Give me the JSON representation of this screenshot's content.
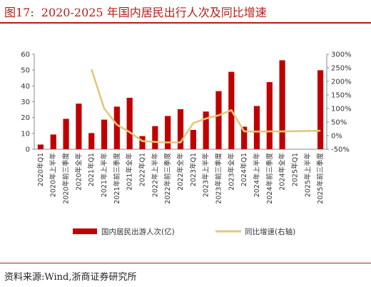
{
  "header": {
    "figure_label": "图17:",
    "title": "2020-2025 年国内居民出行人次及同比增速"
  },
  "source": "资料来源:Wind,浙商证券研究所",
  "colors": {
    "bar": "#c00000",
    "line": "#e3c77a",
    "title": "#b71c1c"
  },
  "chart_data": {
    "type": "bar",
    "categories": [
      "2020年Q1",
      "2020年上半年",
      "2020年前三季度",
      "2020年全年",
      "2021年Q1",
      "2021年上半年",
      "2021年前三季度",
      "2021年全年",
      "2022年Q1",
      "2022年上半年",
      "2022年前三季度",
      "2022年全年",
      "2023年Q1",
      "2023年上半年",
      "2023年前三季度",
      "2023年全年",
      "2024年Q1",
      "2024年上半年",
      "2024年前三季度",
      "2024年全年",
      "2025年Q1",
      "2025年上半年",
      "2025年前三季度"
    ],
    "series": [
      {
        "name": "国内居民出游人次(亿)",
        "type": "bar",
        "axis": "left",
        "values": [
          2.95,
          9.3,
          19.2,
          28.8,
          10.2,
          18.7,
          26.9,
          32.5,
          8.3,
          14.6,
          21.0,
          25.3,
          12.2,
          23.8,
          36.7,
          48.9,
          14.2,
          27.3,
          42.4,
          56.2,
          null,
          null,
          49.9
        ]
      },
      {
        "name": "同比增速(右轴)",
        "type": "line",
        "axis": "right",
        "values": [
          null,
          null,
          null,
          null,
          245,
          100,
          40,
          13,
          -20,
          -23,
          -25,
          -25,
          46,
          63,
          75,
          94,
          16,
          15,
          15.5,
          15.7,
          null,
          null,
          18
        ]
      }
    ],
    "left_axis": {
      "min": 0,
      "max": 60,
      "ticks": [
        "0",
        "10",
        "20",
        "30",
        "40",
        "50",
        "60"
      ]
    },
    "right_axis": {
      "min": -50,
      "max": 300,
      "ticks": [
        "-50%",
        "0%",
        "50%",
        "100%",
        "150%",
        "200%",
        "250%",
        "300%"
      ]
    },
    "legend_position": "bottom"
  }
}
